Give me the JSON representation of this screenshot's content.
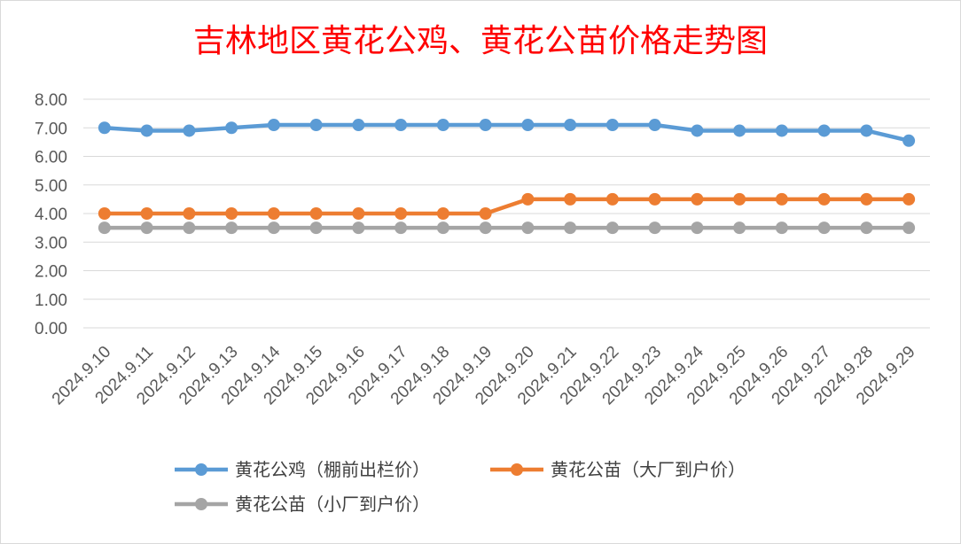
{
  "chart_data": {
    "type": "line",
    "title": "吉林地区黄花公鸡、黄花公苗价格走势图",
    "xlabel": "",
    "ylabel": "",
    "ylim": [
      0,
      8
    ],
    "yticks": [
      "0.00",
      "1.00",
      "2.00",
      "3.00",
      "4.00",
      "5.00",
      "6.00",
      "7.00",
      "8.00"
    ],
    "grid": true,
    "legend_position": "bottom",
    "categories": [
      "2024.9.10",
      "2024.9.11",
      "2024.9.12",
      "2024.9.13",
      "2024.9.14",
      "2024.9.15",
      "2024.9.16",
      "2024.9.17",
      "2024.9.18",
      "2024.9.19",
      "2024.9.20",
      "2024.9.21",
      "2024.9.22",
      "2024.9.23",
      "2024.9.24",
      "2024.9.25",
      "2024.9.26",
      "2024.9.27",
      "2024.9.28",
      "2024.9.29"
    ],
    "series": [
      {
        "name": "黄花公鸡（棚前出栏价）",
        "color": "#5b9bd5",
        "values": [
          7.0,
          6.9,
          6.9,
          7.0,
          7.1,
          7.1,
          7.1,
          7.1,
          7.1,
          7.1,
          7.1,
          7.1,
          7.1,
          7.1,
          6.9,
          6.9,
          6.9,
          6.9,
          6.9,
          6.55
        ]
      },
      {
        "name": "黄花公苗（大厂到户价）",
        "color": "#ed7d31",
        "values": [
          4.0,
          4.0,
          4.0,
          4.0,
          4.0,
          4.0,
          4.0,
          4.0,
          4.0,
          4.0,
          4.5,
          4.5,
          4.5,
          4.5,
          4.5,
          4.5,
          4.5,
          4.5,
          4.5,
          4.5
        ]
      },
      {
        "name": "黄花公苗（小厂到户价）",
        "color": "#a5a5a5",
        "values": [
          3.5,
          3.5,
          3.5,
          3.5,
          3.5,
          3.5,
          3.5,
          3.5,
          3.5,
          3.5,
          3.5,
          3.5,
          3.5,
          3.5,
          3.5,
          3.5,
          3.5,
          3.5,
          3.5,
          3.5
        ]
      }
    ]
  }
}
